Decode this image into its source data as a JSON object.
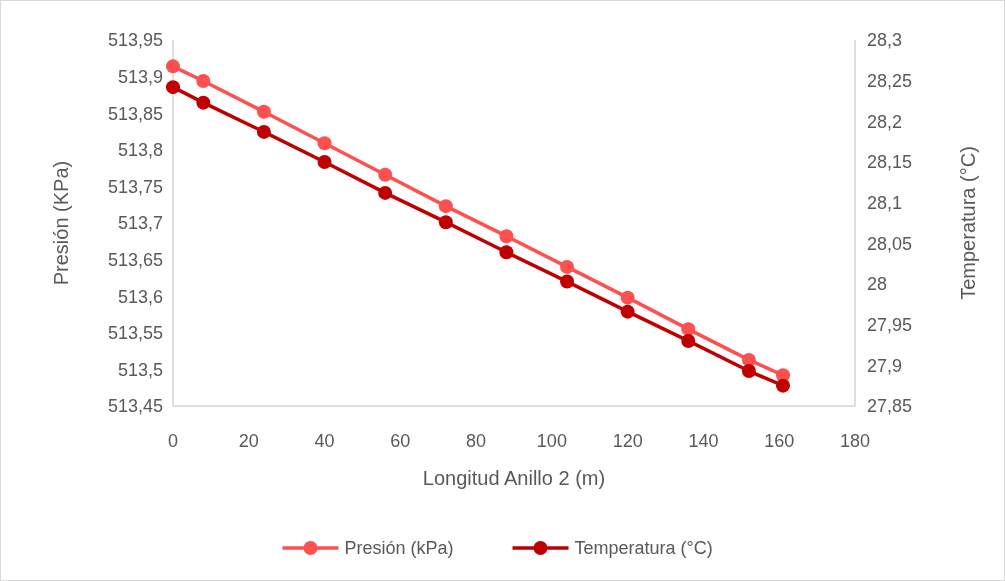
{
  "chart_data": {
    "type": "line",
    "xlabel": "Longitud Anillo 2 (m)",
    "ylabel": "Presión (KPa)",
    "y2label": "Temperatura (°C)",
    "x": [
      0,
      8,
      24,
      40,
      56,
      72,
      88,
      104,
      120,
      136,
      152,
      161
    ],
    "series": [
      {
        "name": "Presión (kPa)",
        "color": "#ff5050",
        "values": [
          513.914,
          513.894,
          513.852,
          513.809,
          513.766,
          513.723,
          513.682,
          513.64,
          513.598,
          513.555,
          513.513,
          513.492
        ]
      },
      {
        "name": "Temperatura (°C)",
        "color": "#c00000",
        "axis": "y2",
        "values": [
          28.242,
          28.223,
          28.187,
          28.15,
          28.112,
          28.076,
          28.039,
          28.003,
          27.966,
          27.93,
          27.893,
          27.875
        ]
      }
    ],
    "xlim": [
      0,
      180
    ],
    "xticks": [
      0,
      20,
      40,
      60,
      80,
      100,
      120,
      140,
      160,
      180
    ],
    "ylim": [
      513.45,
      513.95
    ],
    "yticks": [
      {
        "value": 513.45,
        "label": "513,45"
      },
      {
        "value": 513.5,
        "label": "513,5"
      },
      {
        "value": 513.55,
        "label": "513,55"
      },
      {
        "value": 513.6,
        "label": "513,6"
      },
      {
        "value": 513.65,
        "label": "513,65"
      },
      {
        "value": 513.7,
        "label": "513,7"
      },
      {
        "value": 513.75,
        "label": "513,75"
      },
      {
        "value": 513.8,
        "label": "513,8"
      },
      {
        "value": 513.85,
        "label": "513,85"
      },
      {
        "value": 513.9,
        "label": "513,9"
      },
      {
        "value": 513.95,
        "label": "513,95"
      }
    ],
    "y2lim": [
      27.85,
      28.3
    ],
    "y2ticks": [
      {
        "value": 27.85,
        "label": "27,85"
      },
      {
        "value": 27.9,
        "label": "27,9"
      },
      {
        "value": 27.95,
        "label": "27,95"
      },
      28,
      {
        "value": 28.05,
        "label": "28,05"
      },
      {
        "value": 28.1,
        "label": "28,1"
      },
      {
        "value": 28.15,
        "label": "28,15"
      },
      {
        "value": 28.2,
        "label": "28,2"
      },
      {
        "value": 28.25,
        "label": "28,25"
      },
      {
        "value": 28.3,
        "label": "28,3"
      }
    ],
    "grid": false,
    "legend": "bottom",
    "marker": "circle",
    "line_style": "solid"
  }
}
